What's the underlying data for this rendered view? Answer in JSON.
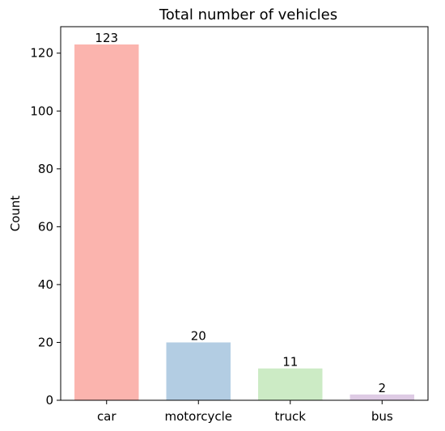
{
  "chart_data": {
    "type": "bar",
    "title": "Total number of vehicles",
    "xlabel": "",
    "ylabel": "Count",
    "categories": [
      "car",
      "motorcycle",
      "truck",
      "bus"
    ],
    "values": [
      123,
      20,
      11,
      2
    ],
    "value_labels": [
      "123",
      "20",
      "11",
      "2"
    ],
    "colors": [
      "#fbb4ae",
      "#b3cde3",
      "#ccebc5",
      "#decbe4"
    ],
    "ylim": [
      0,
      129.15
    ],
    "yticks": [
      0,
      20,
      40,
      60,
      80,
      100,
      120
    ],
    "ytick_labels": [
      "0",
      "20",
      "40",
      "60",
      "80",
      "100",
      "120"
    ],
    "grid": false,
    "legend": "none"
  }
}
